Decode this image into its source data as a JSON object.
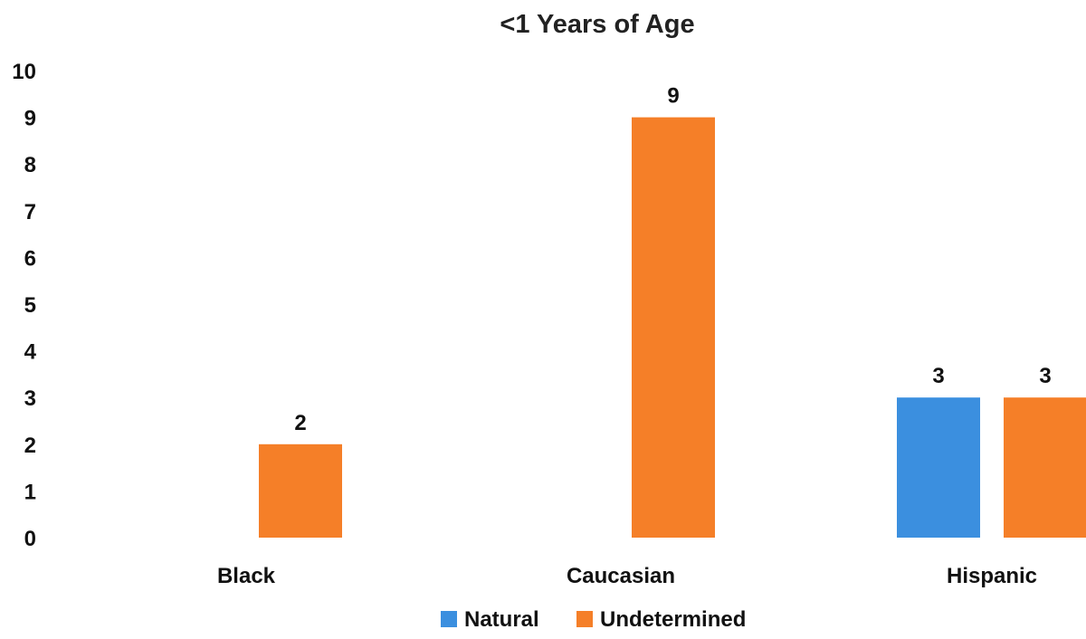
{
  "colors": {
    "natural": "#3b8fdf",
    "undetermined": "#f57f28",
    "text": "#111111",
    "background": "#ffffff"
  },
  "chart_data": {
    "type": "bar",
    "title": "<1 Years of Age",
    "xlabel": "",
    "ylabel": "",
    "categories": [
      "Black",
      "Caucasian",
      "Hispanic"
    ],
    "series": [
      {
        "name": "Natural",
        "color": "#3b8fdf",
        "values": [
          0,
          0,
          3
        ]
      },
      {
        "name": "Undetermined",
        "color": "#f57f28",
        "values": [
          2,
          9,
          3
        ]
      }
    ],
    "ylim": [
      0,
      10
    ],
    "yticks": [
      "0",
      "1",
      "2",
      "3",
      "4",
      "5",
      "6",
      "7",
      "8",
      "9",
      "10"
    ],
    "data_labels": true,
    "grid": false,
    "legend_position": "bottom"
  }
}
